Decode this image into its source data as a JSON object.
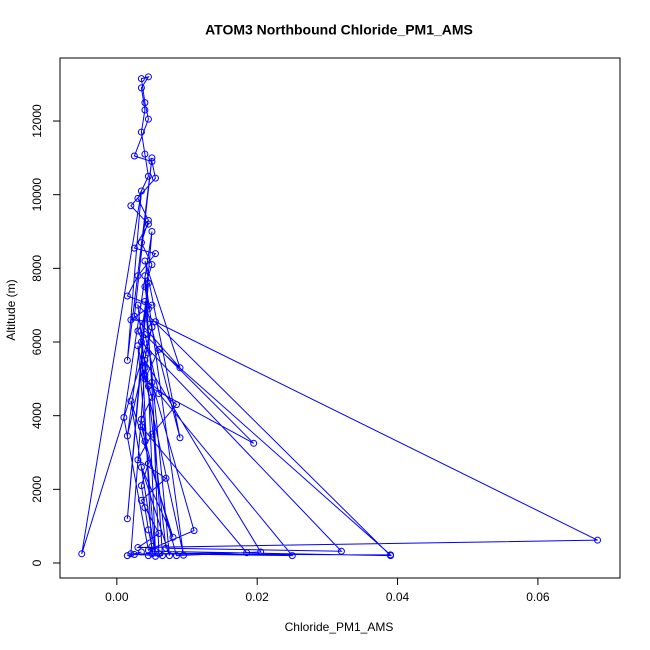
{
  "chart_data": {
    "type": "line",
    "markers": true,
    "title": "ATOM3 Northbound Chloride_PM1_AMS",
    "x_label": "Chloride_PM1_AMS",
    "y_label": "Altitude (m)",
    "color": "#0000ff",
    "xlim": [
      -0.0081,
      0.0717
    ],
    "ylim": [
      -407,
      13711
    ],
    "xticks": [
      {
        "value": 0,
        "label": "0.00"
      },
      {
        "value": 0.02,
        "label": "0.02"
      },
      {
        "value": 0.04,
        "label": "0.04"
      },
      {
        "value": 0.06,
        "label": "0.06"
      }
    ],
    "yticks": [
      0,
      2000,
      4000,
      6000,
      8000,
      10000,
      12000
    ],
    "x": [
      0.0045,
      0.005,
      0.0045,
      0.004,
      0.0035,
      0.0045,
      0.004,
      0.0035,
      0.005,
      0.004,
      0.0045,
      0.003,
      0.0045,
      0.004,
      0.005,
      0.0035,
      0.0045,
      0.003,
      0.0045,
      0.004,
      0.0035,
      0.004,
      0.0035,
      0.0045,
      0.0035,
      0.004,
      0.0045,
      0.0025,
      0.005,
      0.0055,
      0.002,
      0.0045,
      0.0025,
      0.0055,
      0.003,
      0.0015,
      0.005,
      0.002,
      0.0055,
      0.0685,
      0.003,
      0.006,
      0.0035,
      0.007,
      0.003,
      0.005,
      0.0085,
      0.004,
      0.006,
      0.039,
      0.002,
      0.004,
      0.003,
      0.039,
      0.0055,
      0.0045,
      0.0195,
      0.004,
      0.006,
      0.025,
      0.005,
      0.0035,
      0.032,
      0.007,
      0.004,
      0.0205,
      0.0085,
      0.0035,
      0.0185,
      0.006,
      0.005,
      0.011,
      0.0045,
      0.001,
      0.005,
      0.0015,
      0.0045,
      0.0015,
      0.005,
      -0.005,
      0.0035,
      0.0015,
      0.005,
      0.0025,
      0.009,
      0.004,
      0.009,
      0.004,
      0.0075,
      0.0035,
      0.008,
      0.002,
      0.0055,
      0.003,
      0.0095,
      0.004,
      0.0065,
      0.0025,
      0.0015,
      0.0035
    ],
    "values": [
      200,
      450,
      900,
      1500,
      2100,
      2700,
      3300,
      3900,
      4500,
      5100,
      5700,
      6300,
      6900,
      7500,
      8100,
      8700,
      9300,
      9900,
      10500,
      11100,
      11700,
      12300,
      12900,
      13200,
      13150,
      12500,
      12050,
      11050,
      10900,
      10450,
      9700,
      9200,
      8550,
      8400,
      7800,
      7250,
      7000,
      6600,
      6550,
      620,
      420,
      800,
      1700,
      2300,
      2800,
      3500,
      4300,
      5000,
      5800,
      220,
      250,
      5300,
      7000,
      200,
      320,
      4800,
      3250,
      6200,
      4600,
      200,
      250,
      6000,
      320,
      400,
      5500,
      300,
      200,
      3700,
      280,
      250,
      4900,
      880,
      350,
      3950,
      9000,
      1200,
      7600,
      3450,
      6400,
      250,
      10100,
      5500,
      11000,
      6700,
      5300,
      8200,
      3400,
      7100,
      200,
      2600,
      700,
      4400,
      180,
      5900,
      210,
      7800,
      200,
      230,
      200,
      300
    ]
  }
}
